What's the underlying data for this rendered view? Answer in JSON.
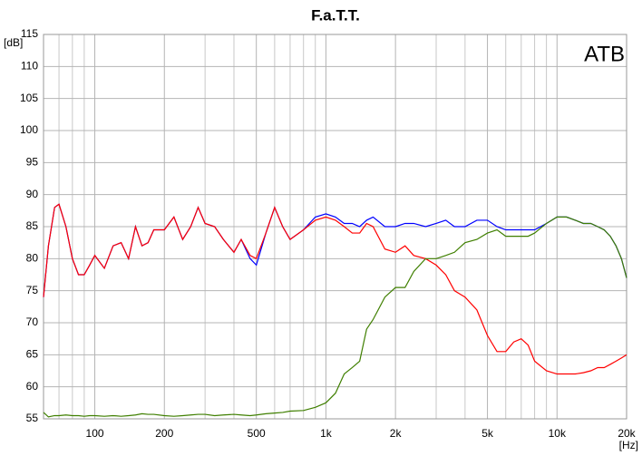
{
  "chart_data": {
    "type": "line",
    "title": "F.a.T.T.",
    "annotation": "ATB",
    "xlabel": "[Hz]",
    "ylabel": "[dB]",
    "xscale": "log",
    "grid": true,
    "xlim": [
      60,
      20000
    ],
    "ylim": [
      55,
      115
    ],
    "xticks": [
      100,
      200,
      500,
      {
        "value": 1000,
        "label": "1k"
      },
      {
        "value": 2000,
        "label": "2k"
      },
      {
        "value": 5000,
        "label": "5k"
      },
      {
        "value": 10000,
        "label": "10k"
      },
      {
        "value": 20000,
        "label": "20k"
      }
    ],
    "xminor": [
      70,
      80,
      90,
      300,
      400,
      600,
      700,
      800,
      900,
      3000,
      4000,
      6000,
      7000,
      8000,
      9000
    ],
    "yticks": [
      55,
      60,
      65,
      70,
      75,
      80,
      85,
      90,
      95,
      100,
      105,
      110,
      115
    ],
    "x": [
      60,
      63,
      67,
      70,
      75,
      80,
      85,
      90,
      95,
      100,
      110,
      120,
      130,
      140,
      150,
      160,
      170,
      180,
      200,
      220,
      240,
      260,
      280,
      300,
      330,
      360,
      400,
      430,
      470,
      500,
      550,
      600,
      650,
      700,
      800,
      900,
      1000,
      1100,
      1200,
      1300,
      1400,
      1500,
      1600,
      1800,
      2000,
      2200,
      2400,
      2700,
      3000,
      3300,
      3600,
      4000,
      4500,
      5000,
      5500,
      6000,
      6500,
      7000,
      7500,
      8000,
      9000,
      10000,
      11000,
      12000,
      13000,
      14000,
      15000,
      16000,
      17000,
      18000,
      19000,
      20000
    ],
    "series": [
      {
        "color": "#0000ff",
        "values": [
          74,
          82,
          88,
          88.5,
          85,
          80,
          77.5,
          77.5,
          79,
          80.5,
          78.5,
          82,
          82.5,
          80,
          85,
          82,
          82.5,
          84.5,
          84.5,
          86.5,
          83,
          85,
          88,
          85.5,
          85,
          83,
          81,
          83,
          80,
          79,
          84,
          88,
          85,
          83,
          84.5,
          86.5,
          87,
          86.5,
          85.5,
          85.5,
          85,
          86,
          86.5,
          85,
          85,
          85.5,
          85.5,
          85,
          85.5,
          86,
          85,
          85,
          86,
          86,
          85,
          84.5,
          84.5,
          84.5,
          84.5,
          84.5,
          85.5,
          86.5,
          86.5,
          86,
          85.5,
          85.5,
          85,
          84.5,
          83.5,
          82,
          80,
          77
        ]
      },
      {
        "color": "#ff0000",
        "values": [
          74,
          82,
          88,
          88.5,
          85,
          80,
          77.5,
          77.5,
          79,
          80.5,
          78.5,
          82,
          82.5,
          80,
          85,
          82,
          82.5,
          84.5,
          84.5,
          86.5,
          83,
          85,
          88,
          85.5,
          85,
          83,
          81,
          83,
          80.5,
          80,
          84,
          88,
          85,
          83,
          84.5,
          86,
          86.5,
          86,
          85,
          84,
          84,
          85.5,
          85,
          81.5,
          81,
          82,
          80.5,
          80,
          79,
          77.5,
          75,
          74,
          72,
          68,
          65.5,
          65.5,
          67,
          67.5,
          66.5,
          64,
          62.5,
          62,
          62,
          62,
          62.2,
          62.5,
          63,
          63,
          63.5,
          64,
          64.5,
          65
        ]
      },
      {
        "color": "#3f7f00",
        "values": [
          56,
          55.3,
          55.5,
          55.5,
          55.6,
          55.5,
          55.5,
          55.4,
          55.5,
          55.5,
          55.4,
          55.5,
          55.4,
          55.5,
          55.6,
          55.8,
          55.7,
          55.7,
          55.5,
          55.4,
          55.5,
          55.6,
          55.7,
          55.7,
          55.5,
          55.6,
          55.7,
          55.6,
          55.5,
          55.6,
          55.8,
          55.9,
          56,
          56.2,
          56.3,
          56.8,
          57.5,
          59,
          62,
          63,
          64,
          69,
          70.5,
          74,
          75.5,
          75.5,
          78,
          80,
          80,
          80.5,
          81,
          82.5,
          83,
          84,
          84.5,
          83.5,
          83.5,
          83.5,
          83.5,
          84,
          85.5,
          86.5,
          86.5,
          86,
          85.5,
          85.5,
          85,
          84.5,
          83.5,
          82,
          80,
          77
        ]
      }
    ]
  }
}
